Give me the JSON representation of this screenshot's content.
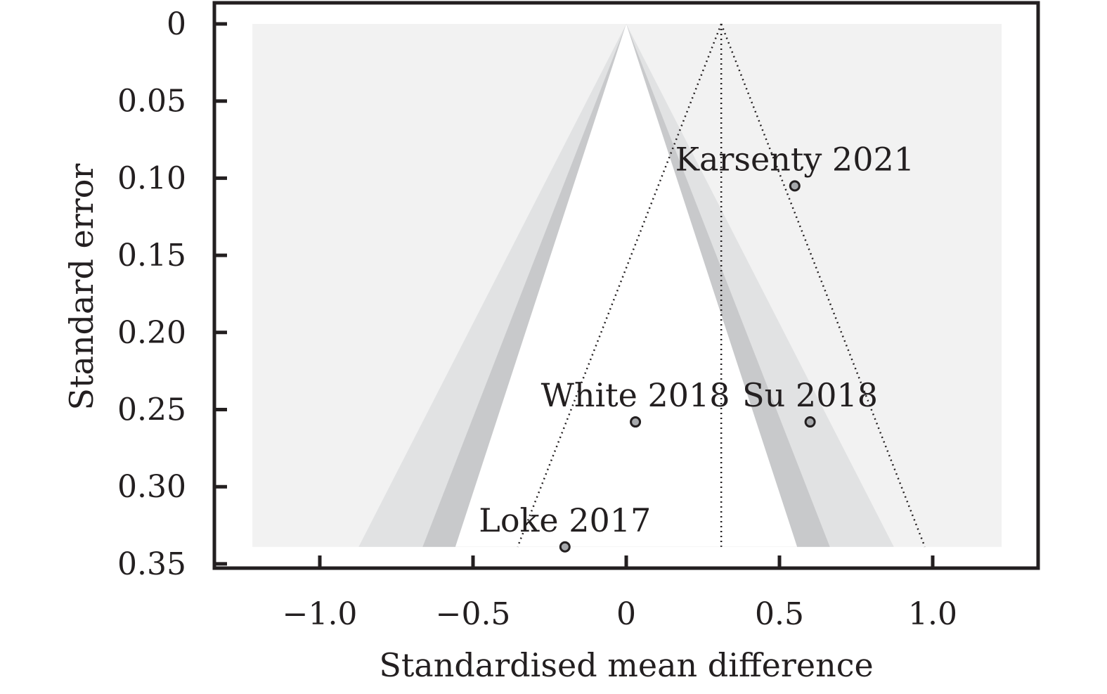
{
  "chart_data": {
    "type": "scatter",
    "subtype": "contour-enhanced funnel plot",
    "xlabel": "Standardised mean difference",
    "ylabel": "Standard error",
    "xlim": [
      -1.25,
      1.25
    ],
    "ylim": [
      0,
      0.35
    ],
    "y_inverted": true,
    "x_ticks": [
      -1.0,
      -0.5,
      0,
      0.5,
      1.0
    ],
    "x_tick_labels": [
      "−1.0",
      "−0.5",
      "0",
      "0.5",
      "1.0"
    ],
    "y_ticks": [
      0,
      0.05,
      0.1,
      0.15,
      0.2,
      0.25,
      0.3,
      0.35
    ],
    "y_tick_labels": [
      "0",
      "0.05",
      "0.10",
      "0.15",
      "0.20",
      "0.25",
      "0.30",
      "0.35"
    ],
    "points": [
      {
        "label": "Karsenty 2021",
        "x": 0.55,
        "y": 0.105
      },
      {
        "label": "White 2018",
        "x": 0.03,
        "y": 0.258
      },
      {
        "label": "Su 2018",
        "x": 0.6,
        "y": 0.258
      },
      {
        "label": "Loke 2017",
        "x": -0.2,
        "y": 0.339
      }
    ],
    "pooled_estimate": 0.31,
    "contour_z": [
      1.645,
      1.96,
      2.576
    ],
    "contour_colors": [
      "#ffffff",
      "#c8c9cb",
      "#e1e2e3",
      "#f2f2f2"
    ],
    "grid": false,
    "legend": "none"
  }
}
